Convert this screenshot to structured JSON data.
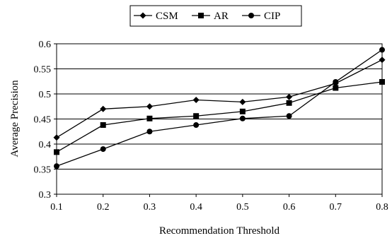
{
  "chart_data": {
    "type": "line",
    "title": "",
    "xlabel": "Recommendation Threshold",
    "ylabel": "Average Precision",
    "x": [
      0.1,
      0.2,
      0.3,
      0.4,
      0.5,
      0.6,
      0.7,
      0.8
    ],
    "x_tick_labels": [
      "0.1",
      "0.2",
      "0.3",
      "0.4",
      "0.5",
      "0.6",
      "0.7",
      "0.8"
    ],
    "y_tick_labels": [
      "0.3",
      "0.35",
      "0.4",
      "0.45",
      "0.5",
      "0.55",
      "0.6"
    ],
    "ylim": [
      0.3,
      0.6
    ],
    "grid": "horizontal",
    "legend_position": "top-center",
    "series": [
      {
        "name": "CSM",
        "marker": "diamond",
        "values": [
          0.413,
          0.47,
          0.475,
          0.488,
          0.484,
          0.494,
          0.521,
          0.568
        ]
      },
      {
        "name": "AR",
        "marker": "square",
        "values": [
          0.384,
          0.438,
          0.451,
          0.456,
          0.465,
          0.482,
          0.512,
          0.524
        ]
      },
      {
        "name": "CIP",
        "marker": "circle",
        "values": [
          0.356,
          0.39,
          0.425,
          0.438,
          0.451,
          0.456,
          0.524,
          0.588
        ]
      }
    ],
    "colors": {
      "line": "#000000",
      "grid": "#000000",
      "frame": "#000000"
    }
  }
}
